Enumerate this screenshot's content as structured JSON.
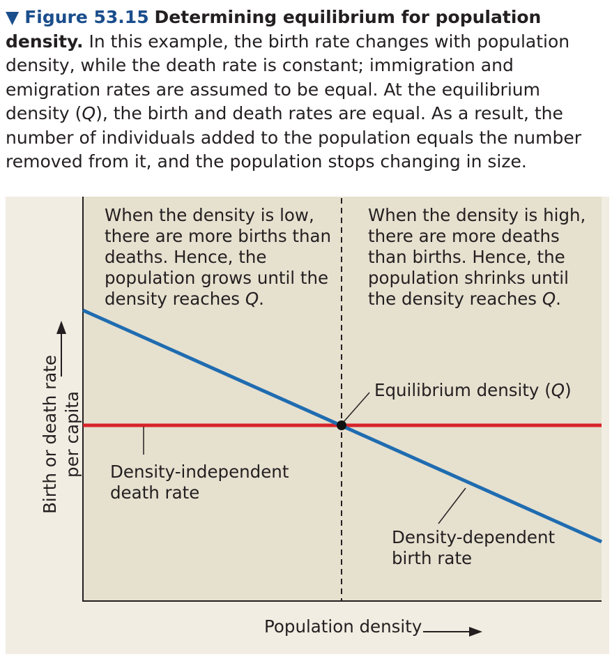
{
  "caption": {
    "marker": "▼",
    "figure_number": "Figure 53.15",
    "title": "Determining equilibrium for population density.",
    "body_before_q": "In this example, the birth rate changes with population density, while the death rate is constant; immigration and emigration rates are assumed to be equal. At the equilibrium density (",
    "q": "Q",
    "body_after_q": "), the birth and death rates are equal. As a result, the number of individuals added to the population equals the number removed from it, and the population stops changing in size."
  },
  "chart_data": {
    "type": "line",
    "xlabel": "Population density",
    "ylabel_line1": "Birth or death rate",
    "ylabel_line2": "per capita",
    "x_ticks": "none",
    "y_ticks": "none",
    "grid": false,
    "legend": "none",
    "series": [
      {
        "name": "Density-dependent birth rate",
        "color": "#1f6cb0",
        "trend": "decreasing with density"
      },
      {
        "name": "Density-independent death rate",
        "color": "#d7232a",
        "trend": "constant"
      }
    ],
    "equilibrium": {
      "label": "Equilibrium density",
      "symbol": "Q"
    },
    "annotations": {
      "left_region": {
        "text_lines": [
          "When the density is low,",
          "there are more births than",
          "deaths. Hence, the",
          "population grows until the"
        ],
        "last_line_prefix": "density reaches ",
        "last_line_symbol": "Q",
        "last_line_suffix": "."
      },
      "right_region": {
        "text_lines": [
          "When the density is high,",
          "there are more deaths",
          "than births. Hence, the",
          "population shrinks until"
        ],
        "last_line_prefix": "the density reaches ",
        "last_line_symbol": "Q",
        "last_line_suffix": "."
      },
      "death_rate_label": [
        "Density-independent",
        "death rate"
      ],
      "birth_rate_label": [
        "Density-dependent",
        "birth rate"
      ]
    },
    "colors": {
      "plot_background": "#e6e0cf",
      "panel_background": "#f1ede2",
      "axis": "#231f20"
    }
  }
}
